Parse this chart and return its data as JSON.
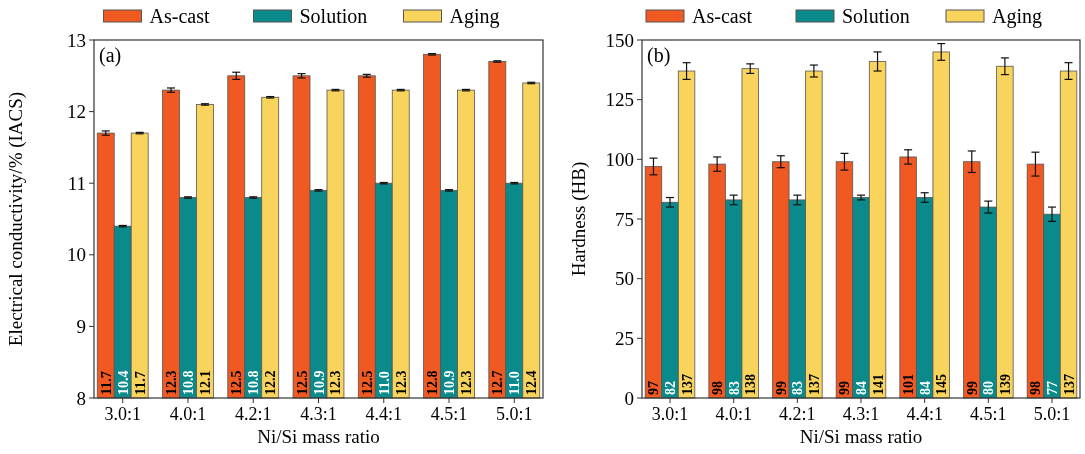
{
  "chart_data": [
    {
      "type": "bar",
      "title": "(a)",
      "xlabel": "Ni/Si mass ratio",
      "ylabel": "Electrical conductivity/% (IACS)",
      "categories": [
        "3.0:1",
        "4.0:1",
        "4.2:1",
        "4.3:1",
        "4.4:1",
        "4.5:1",
        "5.0:1"
      ],
      "series": [
        {
          "name": "As-cast",
          "color": "#f05a22",
          "values": [
            11.7,
            12.3,
            12.5,
            12.5,
            12.5,
            12.8,
            12.7
          ],
          "errors": [
            0.03,
            0.03,
            0.05,
            0.03,
            0.02,
            0.01,
            0.01
          ]
        },
        {
          "name": "Solution",
          "color": "#0a8a8a",
          "values": [
            10.4,
            10.8,
            10.8,
            10.9,
            11.0,
            10.9,
            11.0
          ],
          "value_labels": [
            "10.4",
            "10.8",
            "10.8",
            "10.9",
            "11.0",
            "10.9",
            "11.0"
          ],
          "errors": [
            0.01,
            0.01,
            0.01,
            0.01,
            0.01,
            0.01,
            0.01
          ]
        },
        {
          "name": "Aging",
          "color": "#f8d45c",
          "values": [
            11.7,
            12.1,
            12.2,
            12.3,
            12.3,
            12.3,
            12.4
          ],
          "errors": [
            0.01,
            0.01,
            0.01,
            0.01,
            0.01,
            0.01,
            0.01
          ]
        }
      ],
      "ylim": [
        8,
        13
      ],
      "yticks": [
        8,
        9,
        10,
        11,
        12,
        13
      ],
      "data_labels": true,
      "legend": "top",
      "grid": false
    },
    {
      "type": "bar",
      "title": "(b)",
      "xlabel": "Ni/Si mass ratio",
      "ylabel": "Hardness (HB)",
      "categories": [
        "3.0:1",
        "4.0:1",
        "4.2:1",
        "4.3:1",
        "4.4:1",
        "4.5:1",
        "5.0:1"
      ],
      "series": [
        {
          "name": "As-cast",
          "color": "#f05a22",
          "values": [
            97,
            98,
            99,
            99,
            101,
            99,
            98
          ],
          "errors": [
            3.5,
            3,
            2.5,
            3.5,
            3,
            4.5,
            5
          ]
        },
        {
          "name": "Solution",
          "color": "#0a8a8a",
          "values": [
            82,
            83,
            83,
            84,
            84,
            80,
            77
          ],
          "errors": [
            2,
            2,
            2,
            1,
            2,
            2.5,
            3
          ]
        },
        {
          "name": "Aging",
          "color": "#f8d45c",
          "values": [
            137,
            138,
            137,
            141,
            145,
            139,
            137
          ],
          "errors": [
            3.5,
            2,
            2.5,
            4,
            3.5,
            3.5,
            3.5
          ]
        }
      ],
      "ylim": [
        0,
        150
      ],
      "yticks": [
        0,
        25,
        50,
        75,
        100,
        125,
        150
      ],
      "data_labels": true,
      "legend": "top",
      "grid": false
    }
  ]
}
